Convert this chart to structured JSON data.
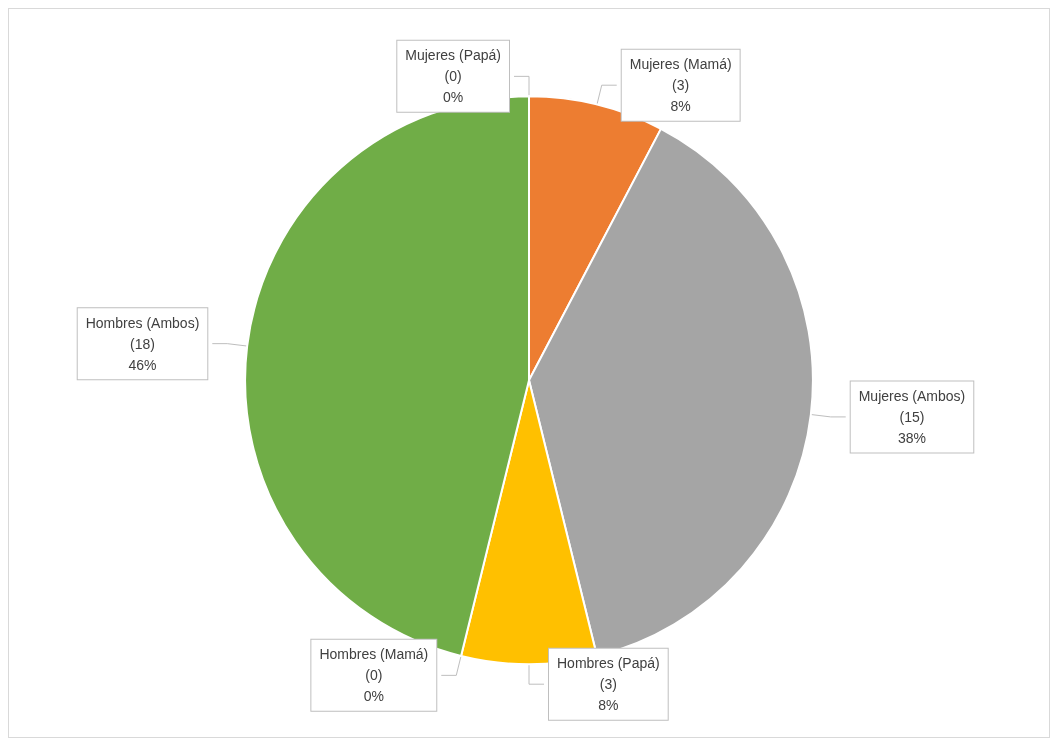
{
  "chart_data": {
    "type": "pie",
    "categories": [
      "Mujeres (Papá)",
      "Mujeres (Mamá)",
      "Mujeres (Ambos)",
      "Hombres (Papá)",
      "Hombres (Mamá)",
      "Hombres (Ambos)"
    ],
    "values": [
      0,
      3,
      15,
      3,
      0,
      18
    ],
    "value_labels": [
      "(0)\n0%",
      "(3)\n8%",
      "(15)\n38%",
      "(3)\n8%",
      "(0)\n0%",
      "(18)\n46%"
    ],
    "colors": [
      "#4472c4",
      "#ed7d31",
      "#a5a5a5",
      "#ffc000",
      "#5b9bd5",
      "#70ad47"
    ],
    "legend": false
  }
}
